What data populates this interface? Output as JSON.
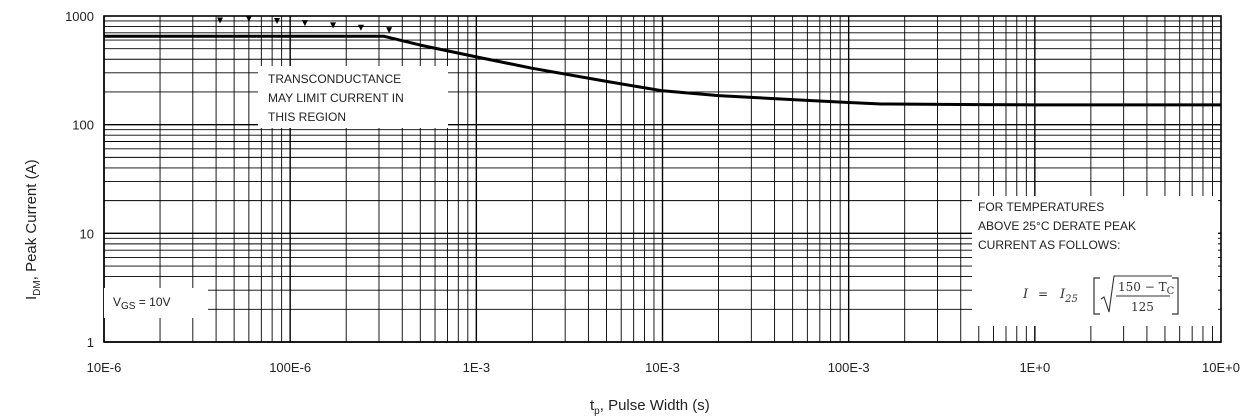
{
  "chart_data": {
    "type": "line",
    "title": "",
    "xlabel_main": "t",
    "xlabel_sub": "p",
    "xlabel_rest": ", Pulse Width (s)",
    "ylabel_main": "I",
    "ylabel_sub": "DM",
    "ylabel_rest": ", Peak Current (A)",
    "x_scale": "log",
    "y_scale": "log",
    "xlim": [
      1e-05,
      10
    ],
    "ylim": [
      1,
      1000
    ],
    "grid": true,
    "x_ticks": [
      {
        "value": 1e-05,
        "label": "10E-6"
      },
      {
        "value": 0.0001,
        "label": "100E-6"
      },
      {
        "value": 0.001,
        "label": "1E-3"
      },
      {
        "value": 0.01,
        "label": "10E-3"
      },
      {
        "value": 0.1,
        "label": "100E-3"
      },
      {
        "value": 1,
        "label": "1E+0"
      },
      {
        "value": 10,
        "label": "10E+0"
      }
    ],
    "y_ticks": [
      {
        "value": 1,
        "label": "1"
      },
      {
        "value": 10,
        "label": "10"
      },
      {
        "value": 100,
        "label": "100"
      },
      {
        "value": 1000,
        "label": "1000"
      }
    ],
    "series": [
      {
        "x": [
          1e-05,
          0.0001,
          0.00032,
          0.0005,
          0.001,
          0.002,
          0.005,
          0.01,
          0.02,
          0.05,
          0.1,
          0.15,
          0.5,
          1,
          10
        ],
        "y": [
          650,
          650,
          650,
          540,
          420,
          330,
          250,
          205,
          185,
          170,
          160,
          155,
          153,
          152,
          152
        ]
      }
    ],
    "annotations": {
      "transconductance": [
        "TRANSCONDUCTANCE",
        "MAY LIMIT CURRENT IN",
        "THIS REGION"
      ],
      "derate": [
        "FOR TEMPERATURES",
        "ABOVE 25°C DERATE PEAK",
        "CURRENT AS FOLLOWS:"
      ],
      "vgs_main": "V",
      "vgs_sub": "GS",
      "vgs_rest": " = 10V",
      "formula": {
        "lhs": "I",
        "eq": "=",
        "i25_main": "I",
        "i25_sub": "25",
        "numerator": "150 − T",
        "numerator_sub": "C",
        "denominator": "125"
      }
    }
  }
}
